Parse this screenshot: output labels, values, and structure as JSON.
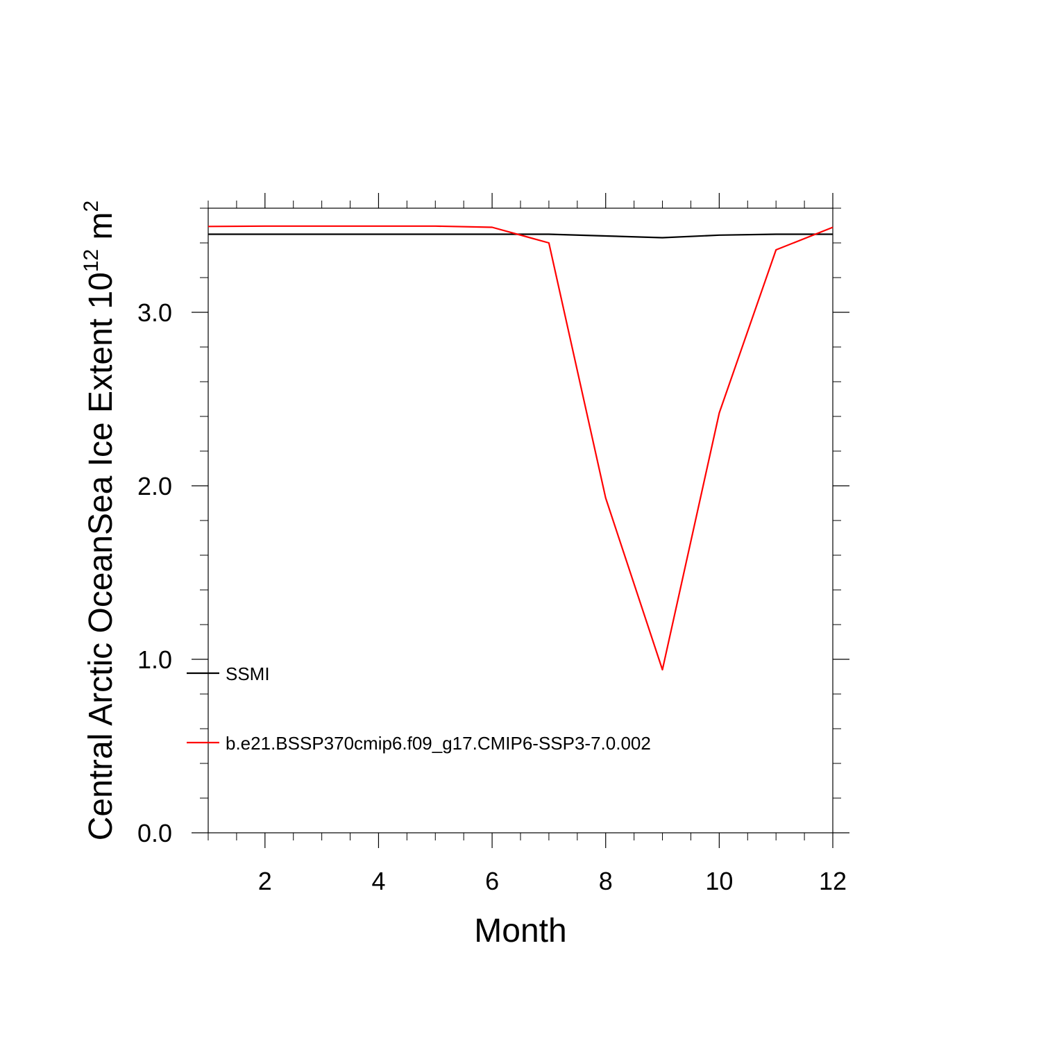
{
  "chart_data": {
    "type": "line",
    "xlabel": "Month",
    "ylabel_main": "Central Arctic OceanSea Ice Extent 10",
    "ylabel_sup": "12",
    "ylabel_unit": " m",
    "ylabel_unit_sup": "2",
    "xlim": [
      1,
      12
    ],
    "ylim": [
      0.0,
      3.6
    ],
    "x_ticks": [
      2,
      4,
      6,
      8,
      10,
      12
    ],
    "x_tick_labels": [
      "2",
      "4",
      "6",
      "8",
      "10",
      "12"
    ],
    "y_ticks": [
      0.0,
      1.0,
      2.0,
      3.0
    ],
    "y_tick_labels": [
      "0.0",
      "1.0",
      "2.0",
      "3.0"
    ],
    "grid": false,
    "legend_position": "lower-left",
    "x": [
      1,
      2,
      3,
      4,
      5,
      6,
      7,
      8,
      9,
      10,
      11,
      12
    ],
    "series": [
      {
        "name": "SSMI",
        "color": "#000000",
        "values": [
          3.45,
          3.45,
          3.45,
          3.45,
          3.45,
          3.45,
          3.45,
          3.44,
          3.43,
          3.445,
          3.45,
          3.45
        ]
      },
      {
        "name": "b.e21.BSSP370cmip6.f09_g17.CMIP6-SSP3-7.0.002",
        "color": "#ff0000",
        "values": [
          3.495,
          3.497,
          3.497,
          3.497,
          3.497,
          3.49,
          3.4,
          1.93,
          0.94,
          2.42,
          3.36,
          3.49
        ]
      }
    ]
  }
}
